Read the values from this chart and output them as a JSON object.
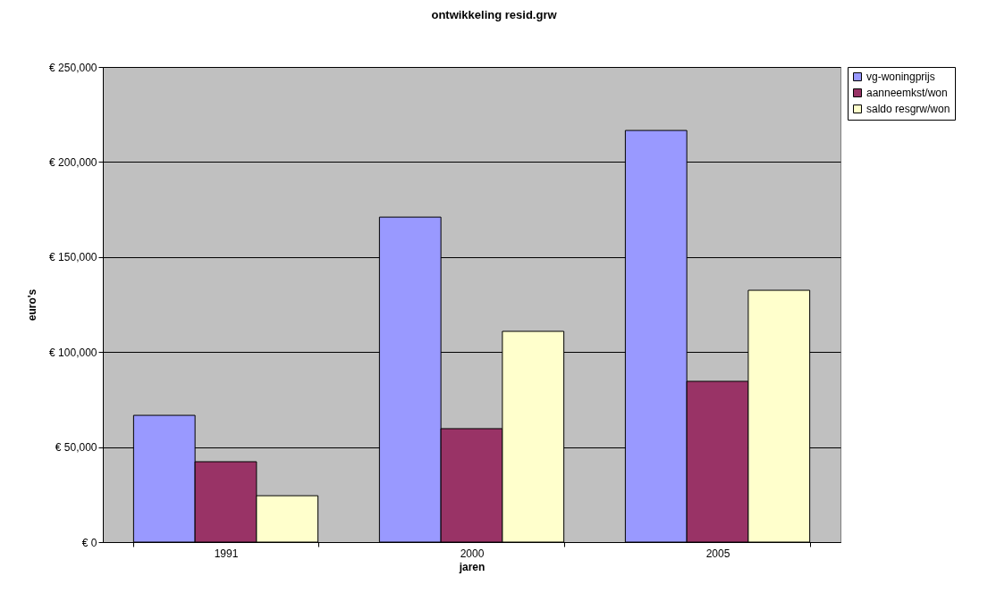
{
  "chart_data": {
    "type": "bar",
    "title": "ontwikkeling resid.grw",
    "xlabel": "jaren",
    "ylabel": "euro's",
    "categories": [
      "1991",
      "2000",
      "2005"
    ],
    "series": [
      {
        "name": "vg-woningprijs",
        "color": "#9999ff",
        "values": [
          66700,
          171000,
          216600
        ]
      },
      {
        "name": "aanneemkst/won",
        "color": "#993366",
        "values": [
          42300,
          59700,
          84600
        ]
      },
      {
        "name": "saldo resgrw/won",
        "color": "#ffffcc",
        "values": [
          24400,
          110900,
          132500
        ]
      }
    ],
    "ylim": [
      0,
      250000
    ],
    "yticks": [
      {
        "value": 0,
        "label": "€ 0"
      },
      {
        "value": 50000,
        "label": "€ 50,000"
      },
      {
        "value": 100000,
        "label": "€ 100,000"
      },
      {
        "value": 150000,
        "label": "€ 150,000"
      },
      {
        "value": 200000,
        "label": "€ 200,000"
      },
      {
        "value": 250000,
        "label": "€ 250,000"
      }
    ],
    "grid": "y",
    "legend": "right"
  }
}
